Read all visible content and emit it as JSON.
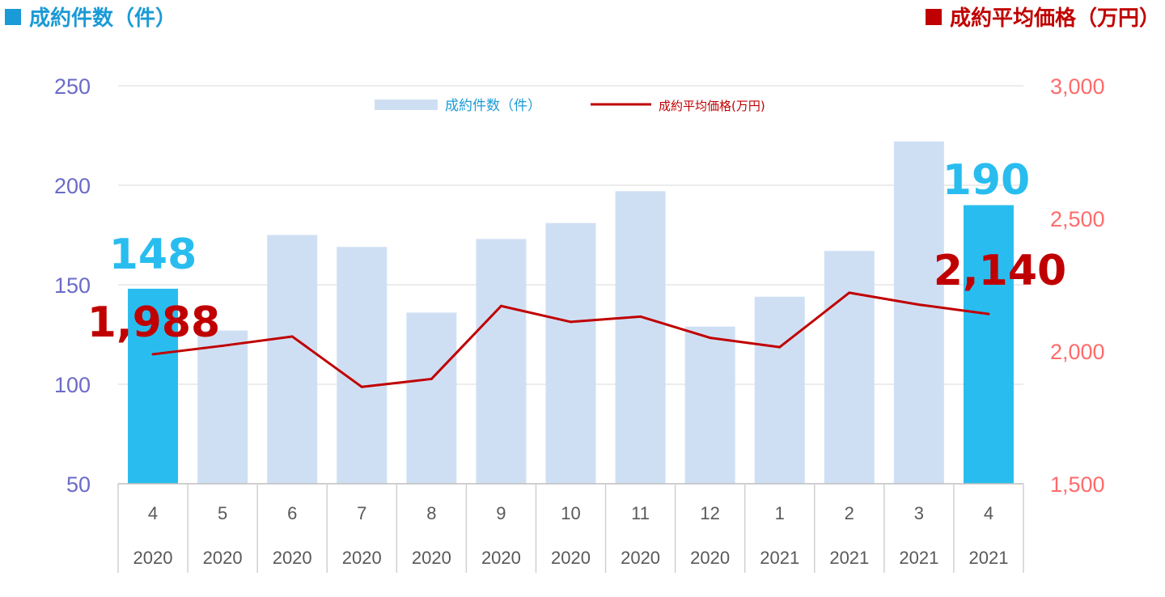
{
  "header": {
    "left_label": "成約件数（件）",
    "right_label": "成約平均価格（万円）"
  },
  "colors": {
    "bar": "#cfdff3",
    "bar_highlight": "#29bdef",
    "line": "#c00000",
    "left_axis": "#6b6bc8",
    "right_axis": "#ff6b6b",
    "header_left": "#1a9ad6",
    "header_right": "#c00000",
    "legend_bar_text": "#1a9ad6",
    "legend_line_text": "#c00000"
  },
  "chart_data": {
    "type": "bar",
    "categories": [
      [
        "4",
        "2020"
      ],
      [
        "5",
        "2020"
      ],
      [
        "6",
        "2020"
      ],
      [
        "7",
        "2020"
      ],
      [
        "8",
        "2020"
      ],
      [
        "9",
        "2020"
      ],
      [
        "10",
        "2020"
      ],
      [
        "11",
        "2020"
      ],
      [
        "12",
        "2020"
      ],
      [
        "1",
        "2021"
      ],
      [
        "2",
        "2021"
      ],
      [
        "3",
        "2021"
      ],
      [
        "4",
        "2021"
      ]
    ],
    "series": [
      {
        "name": "成約件数（件）",
        "type": "bar",
        "axis": "left",
        "values": [
          148,
          127,
          175,
          169,
          136,
          173,
          181,
          197,
          129,
          144,
          167,
          222,
          190
        ],
        "highlight": [
          0,
          12
        ]
      },
      {
        "name": "成約平均価格(万円)",
        "type": "line",
        "axis": "right",
        "values": [
          1988,
          2020,
          2055,
          1865,
          1895,
          2170,
          2110,
          2130,
          2050,
          2015,
          2220,
          2175,
          2140
        ]
      }
    ],
    "y_left": {
      "range": [
        50,
        250
      ],
      "ticks": [
        "50",
        "100",
        "150",
        "200",
        "250"
      ]
    },
    "y_right": {
      "range": [
        1500,
        3000
      ],
      "ticks": [
        "1,500",
        "2,000",
        "2,500",
        "3,000"
      ]
    },
    "annotations": [
      {
        "series": 0,
        "index": 0,
        "text": "148"
      },
      {
        "series": 0,
        "index": 12,
        "text": "190"
      },
      {
        "series": 1,
        "index": 0,
        "text": "1,988"
      },
      {
        "series": 1,
        "index": 12,
        "text": "2,140"
      }
    ],
    "grid": true,
    "legend": "top-center"
  }
}
